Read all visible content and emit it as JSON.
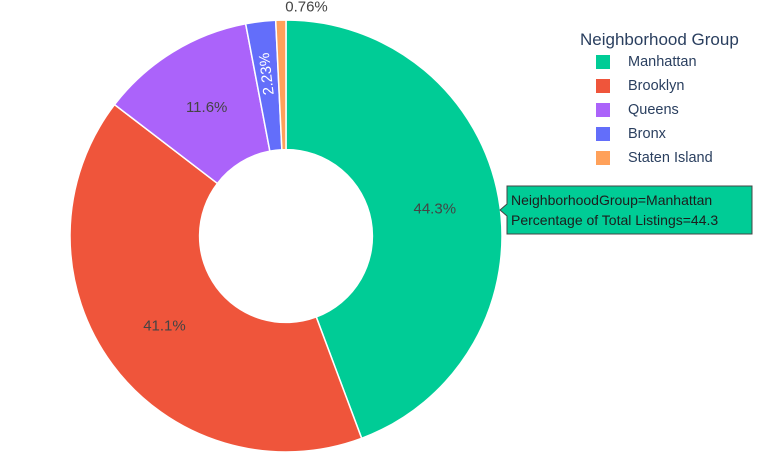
{
  "chart_data": {
    "type": "pie",
    "hole": 0.4,
    "legend_title": "Neighborhood Group",
    "legend_position": "top-right",
    "categories": [
      "Manhattan",
      "Brooklyn",
      "Queens",
      "Bronx",
      "Staten Island"
    ],
    "values": [
      44.3,
      41.1,
      11.6,
      2.23,
      0.76
    ],
    "labels": [
      "44.3%",
      "41.1%",
      "11.6%",
      "2.23%",
      "0.76%"
    ],
    "colors": [
      "#00cc96",
      "#ef553b",
      "#ab63fa",
      "#636efa",
      "#ffa15a"
    ],
    "hover": {
      "category_index": 0,
      "lines": [
        "NeighborhoodGroup=Manhattan",
        "Percentage of Total Listings=44.3"
      ]
    }
  }
}
